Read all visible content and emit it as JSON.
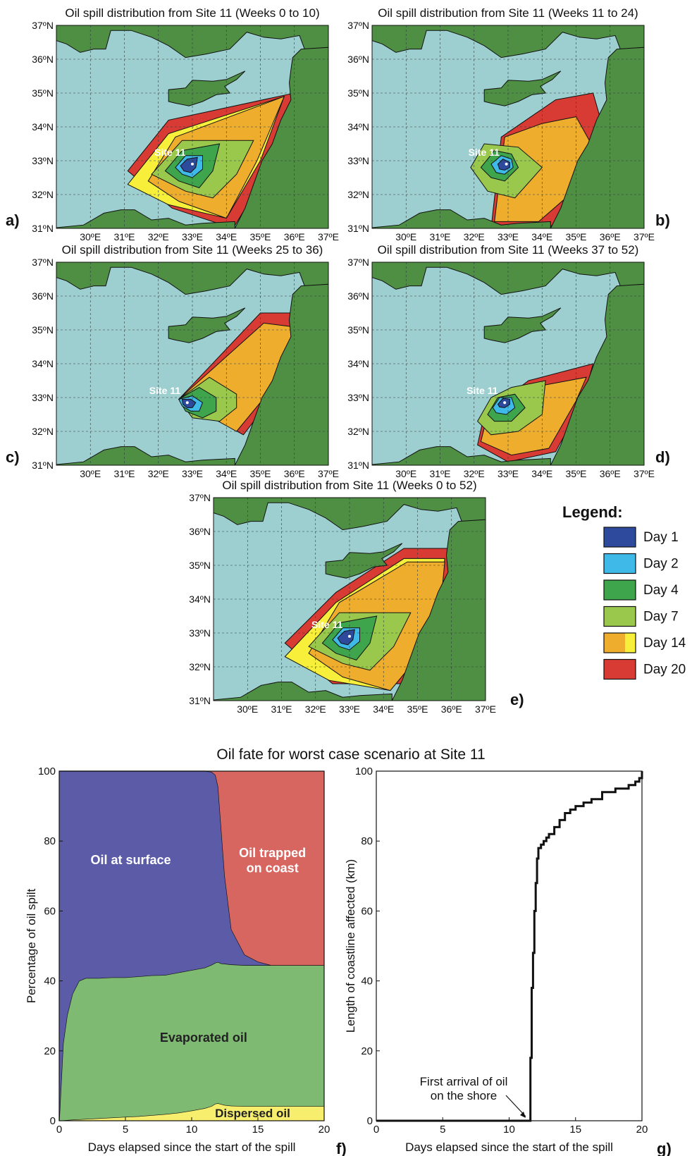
{
  "colors": {
    "sea": "#9ecfd0",
    "land": "#4e8f44",
    "grid": "#2c3c3c",
    "day1": "#2e4a9c",
    "day2": "#3fb9e8",
    "day4": "#3ea54c",
    "day7": "#9ac84c",
    "day14": "#efad2e",
    "day14b": "#f7ef3a",
    "day20": "#d83a34",
    "surface": "#5b5ba8",
    "coast": "#d76660",
    "evaporated": "#7fba72",
    "dispersed": "#f6ee6c"
  },
  "maps": [
    {
      "title": "Oil spill distribution from Site 11 (Weeks 0 to 10)",
      "panel": "a)",
      "site_label": "Site 11"
    },
    {
      "title": "Oil spill distribution from Site 11 (Weeks 11 to 24)",
      "panel": "b)",
      "site_label": "Site 11"
    },
    {
      "title": "Oil spill distribution from Site 11 (Weeks 25 to 36)",
      "panel": "c)",
      "site_label": "Site 11"
    },
    {
      "title": "Oil spill distribution from Site 11 (Weeks 37 to 52)",
      "panel": "d)",
      "site_label": "Site 11"
    },
    {
      "title": "Oil spill distribution from Site 11 (Weeks 0 to 52)",
      "panel": "e)",
      "site_label": "Site 11"
    }
  ],
  "map_axes": {
    "lat_labels": [
      "31ºN",
      "32ºN",
      "33ºN",
      "34ºN",
      "35ºN",
      "36ºN",
      "37ºN"
    ],
    "lon_labels": [
      "30ºE",
      "31ºE",
      "32ºE",
      "33ºE",
      "34ºE",
      "35ºE",
      "36ºE",
      "37ºE"
    ]
  },
  "legend": {
    "title": "Legend:",
    "items": [
      {
        "label": "Day 1",
        "color": "#2e4a9c"
      },
      {
        "label": "Day 2",
        "color": "#3fb9e8"
      },
      {
        "label": "Day 4",
        "color": "#3ea54c"
      },
      {
        "label": "Day 7",
        "color": "#9ac84c"
      },
      {
        "label": "Day 14",
        "color": "#efad2e"
      },
      {
        "label": "Day 20",
        "color": "#d83a34"
      }
    ]
  },
  "fate_title": "Oil fate for worst case scenario at Site 11",
  "chart_data": [
    {
      "type": "area",
      "panel": "f)",
      "xlabel": "Days elapsed since the start of the spill",
      "ylabel": "Percentage of oil spilt",
      "xlim": [
        0,
        20
      ],
      "ylim": [
        0,
        100
      ],
      "xticks": [
        0,
        5,
        10,
        15,
        20
      ],
      "yticks": [
        0,
        20,
        40,
        60,
        80,
        100
      ],
      "x": [
        0,
        0.3,
        0.6,
        1,
        1.5,
        2,
        3,
        4,
        5,
        6,
        7,
        8,
        9,
        10,
        11,
        11.5,
        11.8,
        12,
        12.2,
        12.5,
        13,
        14,
        15,
        16,
        18,
        20
      ],
      "series": [
        {
          "name": "Dispersed oil",
          "values": [
            0,
            0.1,
            0.2,
            0.3,
            0.4,
            0.5,
            0.7,
            0.9,
            1.1,
            1.3,
            1.6,
            1.9,
            2.3,
            2.9,
            3.6,
            4.2,
            4.9,
            5.0,
            4.8,
            4.5,
            4.3,
            4.2,
            4.2,
            4.2,
            4.2,
            4.2
          ]
        },
        {
          "name": "Evaporated oil",
          "values": [
            0,
            22,
            30,
            36,
            39.6,
            40.3,
            40.1,
            40.1,
            39.9,
            40.0,
            40.0,
            39.8,
            40.1,
            40.2,
            40.2,
            40.4,
            40.3,
            40.4,
            40.2,
            40.4,
            40.4,
            40.3,
            40.3,
            40.3,
            40.3,
            40.3
          ]
        },
        {
          "name": "Oil at surface",
          "values": [
            100,
            77.9,
            69.8,
            63.7,
            60,
            59.2,
            59.2,
            59,
            59,
            58.7,
            58.4,
            58.3,
            57.6,
            56.9,
            56.2,
            55.2,
            53.7,
            50.1,
            40,
            25,
            10,
            3,
            1,
            0,
            0,
            0
          ]
        },
        {
          "name": "Oil trapped on coast",
          "values": [
            0,
            0,
            0,
            0,
            0,
            0,
            0,
            0,
            0,
            0,
            0,
            0,
            0,
            0,
            0,
            0.2,
            1.1,
            4.5,
            15,
            30.1,
            45.3,
            52.5,
            54.5,
            55.5,
            55.5,
            55.5
          ]
        }
      ],
      "labels": [
        "Oil at surface",
        "Oil trapped",
        "on coast",
        "Evaporated oil",
        "Dispersed oil"
      ]
    },
    {
      "type": "line",
      "panel": "g)",
      "xlabel": "Days elapsed since the start of the spill",
      "ylabel": "Length of coastline affected (km)",
      "xlim": [
        0,
        20
      ],
      "ylim": [
        0,
        100
      ],
      "xticks": [
        0,
        5,
        10,
        15,
        20
      ],
      "yticks": [
        0,
        20,
        40,
        60,
        80,
        100
      ],
      "x": [
        0,
        11.5,
        11.6,
        11.7,
        11.8,
        11.9,
        12.0,
        12.1,
        12.2,
        12.4,
        12.6,
        12.8,
        13.0,
        13.4,
        13.8,
        14.2,
        14.6,
        15.0,
        15.6,
        16.2,
        17.0,
        18.0,
        19.0,
        19.5,
        19.8,
        20.0
      ],
      "values": [
        0,
        0,
        18,
        38,
        48,
        60,
        68,
        75,
        78,
        79,
        80,
        81,
        82,
        84,
        86,
        88,
        89,
        90,
        91,
        92,
        94,
        95,
        96,
        97,
        98,
        100
      ],
      "annotation": [
        "First arrival of oil",
        "on the shore"
      ]
    }
  ]
}
